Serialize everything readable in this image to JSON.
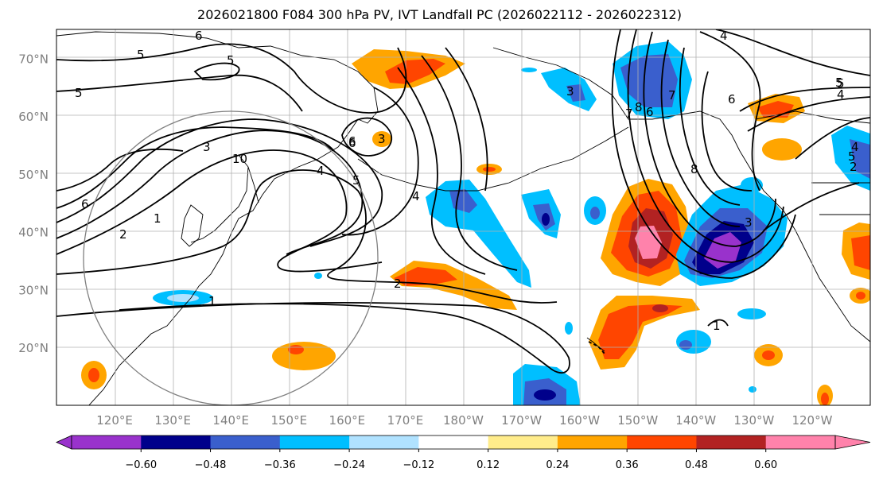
{
  "title": "2026021800 F084 300 hPa PV, IVT Landfall PC (2026022112 - 2026022312)",
  "lat_labels": [
    {
      "lat": 70,
      "text": "70°N"
    },
    {
      "lat": 60,
      "text": "60°N"
    },
    {
      "lat": 50,
      "text": "50°N"
    },
    {
      "lat": 40,
      "text": "40°N"
    },
    {
      "lat": 30,
      "text": "30°N"
    },
    {
      "lat": 20,
      "text": "20°N"
    }
  ],
  "lon_labels": [
    {
      "lon": 120,
      "text": "120°E"
    },
    {
      "lon": 130,
      "text": "130°E"
    },
    {
      "lon": 140,
      "text": "140°E"
    },
    {
      "lon": 150,
      "text": "150°E"
    },
    {
      "lon": 160,
      "text": "160°E"
    },
    {
      "lon": 170,
      "text": "170°E"
    },
    {
      "lon": 180,
      "text": "180°W"
    },
    {
      "lon": 190,
      "text": "170°W"
    },
    {
      "lon": 200,
      "text": "160°W"
    },
    {
      "lon": 210,
      "text": "150°W"
    },
    {
      "lon": 220,
      "text": "140°W"
    },
    {
      "lon": 230,
      "text": "130°W"
    },
    {
      "lon": 240,
      "text": "120°W"
    }
  ],
  "colorbar": {
    "colors": [
      "#9932cc",
      "#00008b",
      "#3a5fcd",
      "#00bfff",
      "#b0e2ff",
      "#ffffff",
      "#ffec8b",
      "#ffa500",
      "#ff4500",
      "#b22222",
      "#ff82ab"
    ],
    "ticks": [
      "−0.60",
      "−0.48",
      "−0.36",
      "−0.24",
      "−0.12",
      "0.12",
      "0.24",
      "0.36",
      "0.48",
      "0.60"
    ]
  },
  "contour_labels": [
    "6",
    "5",
    "5",
    "5",
    "6",
    "1",
    "2",
    "3",
    "4",
    "5",
    "6",
    "10",
    "3",
    "4",
    "5",
    "6",
    "1",
    "2",
    "4",
    "3",
    "6",
    "7",
    "8",
    "4",
    "5",
    "6",
    "7",
    "8",
    "3",
    "1",
    "2",
    "5",
    "4",
    "6"
  ]
}
